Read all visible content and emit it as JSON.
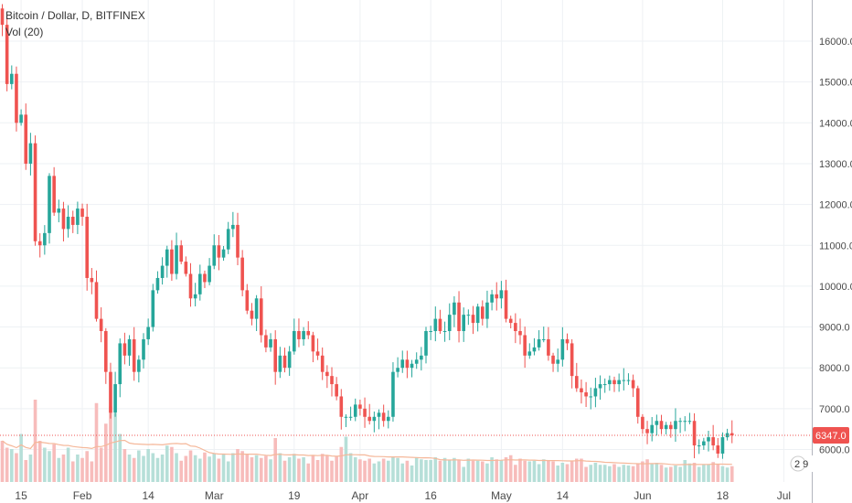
{
  "header": {
    "title": "Bitcoin / Dollar, D, BITFINEX",
    "volume_label": "Vol (20)"
  },
  "colors": {
    "up": "#26a69a",
    "down": "#ef5350",
    "up_volume": "#b6dfd8",
    "down_volume": "#f7bcbb",
    "volume_ma": "#f5b89a",
    "grid": "#eef1f4",
    "axis": "#b2b5be"
  },
  "chart_data": {
    "type": "candlestick",
    "title": "Bitcoin / Dollar, D, BITFINEX",
    "ylim": [
      5150,
      16950
    ],
    "y_ticks": [
      6000,
      7000,
      8000,
      9000,
      10000,
      11000,
      12000,
      13000,
      14000,
      15000,
      16000
    ],
    "y_tick_labels": [
      "6000.0",
      "7000.0",
      "8000.0",
      "9000.0",
      "10000.0",
      "11000.0",
      "12000.0",
      "13000.0",
      "14000.0",
      "15000.0",
      "16000.0"
    ],
    "x_ticks": [
      {
        "index": 4,
        "label": "15"
      },
      {
        "index": 17,
        "label": "Feb"
      },
      {
        "index": 31,
        "label": "14"
      },
      {
        "index": 45,
        "label": "Mar"
      },
      {
        "index": 62,
        "label": "19"
      },
      {
        "index": 76,
        "label": "Apr"
      },
      {
        "index": 91,
        "label": "16"
      },
      {
        "index": 106,
        "label": "May"
      },
      {
        "index": 119,
        "label": "14"
      },
      {
        "index": 136,
        "label": "Jun"
      },
      {
        "index": 153,
        "label": "18"
      },
      {
        "index": 166,
        "label": "Jul"
      }
    ],
    "last_price": 6347.0,
    "last_price_label": "6347.0",
    "volume_ma_period": 20,
    "badge_label": "2 9",
    "closes": [
      16400,
      14950,
      15200,
      14000,
      14200,
      13000,
      13500,
      11100,
      11000,
      11300,
      12700,
      11800,
      11900,
      11400,
      11700,
      11500,
      11900,
      11700,
      10200,
      10100,
      9200,
      8900,
      7900,
      6900,
      7600,
      8600,
      8300,
      8700,
      7900,
      8200,
      8700,
      9000,
      9900,
      10200,
      10500,
      10900,
      10300,
      11000,
      10600,
      10300,
      9700,
      9800,
      10300,
      10100,
      10500,
      11000,
      10700,
      10900,
      11400,
      11500,
      10700,
      9900,
      9400,
      9200,
      9700,
      8800,
      8500,
      8700,
      7900,
      8300,
      8000,
      8400,
      8900,
      8700,
      8900,
      8800,
      8400,
      8300,
      7900,
      7800,
      7600,
      7300,
      6800,
      6800,
      6800,
      7100,
      7000,
      6800,
      6700,
      6800,
      6900,
      6700,
      6800,
      7900,
      8000,
      8200,
      8000,
      8100,
      8200,
      8300,
      8900,
      8900,
      9200,
      8900,
      8900,
      9300,
      9600,
      8900,
      9300,
      9300,
      9100,
      9500,
      9200,
      9600,
      9800,
      9700,
      9900,
      9200,
      9100,
      8900,
      8800,
      8300,
      8400,
      8500,
      8700,
      8700,
      8300,
      8100,
      8200,
      8700,
      8600,
      7800,
      7500,
      7400,
      7300,
      7300,
      7500,
      7600,
      7600,
      7700,
      7600,
      7700,
      7700,
      7700,
      7500,
      6800,
      6500,
      6400,
      6600,
      6700,
      6500,
      6600,
      6500,
      6700,
      6700,
      6700,
      6700,
      6100,
      6100,
      6200,
      6300,
      6100,
      5900,
      6300,
      6400,
      6347
    ],
    "volumes": [
      6.0,
      5.0,
      4.8,
      4.2,
      7.0,
      3.2,
      4.0,
      12.0,
      6.0,
      5.0,
      4.5,
      5.5,
      3.5,
      4.0,
      5.0,
      3.0,
      4.0,
      3.5,
      4.5,
      3.0,
      11.5,
      5.0,
      8.5,
      11.0,
      10.0,
      7.0,
      4.8,
      4.0,
      3.5,
      4.6,
      3.8,
      4.8,
      4.2,
      3.5,
      4.0,
      5.3,
      5.1,
      4.2,
      3.1,
      3.8,
      4.6,
      3.9,
      3.4,
      4.3,
      3.7,
      4.2,
      3.4,
      4.0,
      3.0,
      4.2,
      4.8,
      4.5,
      4.0,
      3.6,
      3.9,
      3.5,
      3.8,
      3.3,
      6.4,
      4.2,
      3.1,
      3.6,
      4.1,
      3.4,
      3.6,
      2.7,
      3.8,
      3.2,
      4.1,
      3.9,
      3.1,
      3.7,
      5.1,
      6.6,
      4.2,
      3.6,
      3.3,
      3.1,
      3.4,
      2.7,
      3.0,
      3.4,
      3.1,
      3.6,
      3.5,
      2.7,
      3.1,
      2.4,
      3.6,
      3.3,
      3.2,
      3.2,
      3.6,
      3.1,
      3.5,
      3.2,
      3.5,
      3.2,
      2.2,
      3.4,
      3.1,
      3.1,
      3.0,
      2.7,
      3.6,
      3.3,
      3.2,
      3.6,
      3.9,
      2.5,
      3.4,
      3.1,
      3.0,
      3.1,
      2.6,
      3.3,
      3.2,
      3.0,
      2.4,
      2.8,
      2.6,
      3.1,
      3.4,
      3.4,
      2.2,
      2.5,
      2.8,
      2.5,
      2.5,
      2.3,
      2.6,
      2.2,
      2.5,
      2.4,
      2.3,
      2.6,
      3.0,
      3.3,
      2.6,
      2.8,
      2.5,
      2.1,
      2.2,
      2.4,
      2.2,
      3.2,
      2.7,
      2.8,
      2.2,
      2.6,
      2.6,
      2.9,
      2.6,
      2.3,
      2.1,
      2.3
    ]
  }
}
